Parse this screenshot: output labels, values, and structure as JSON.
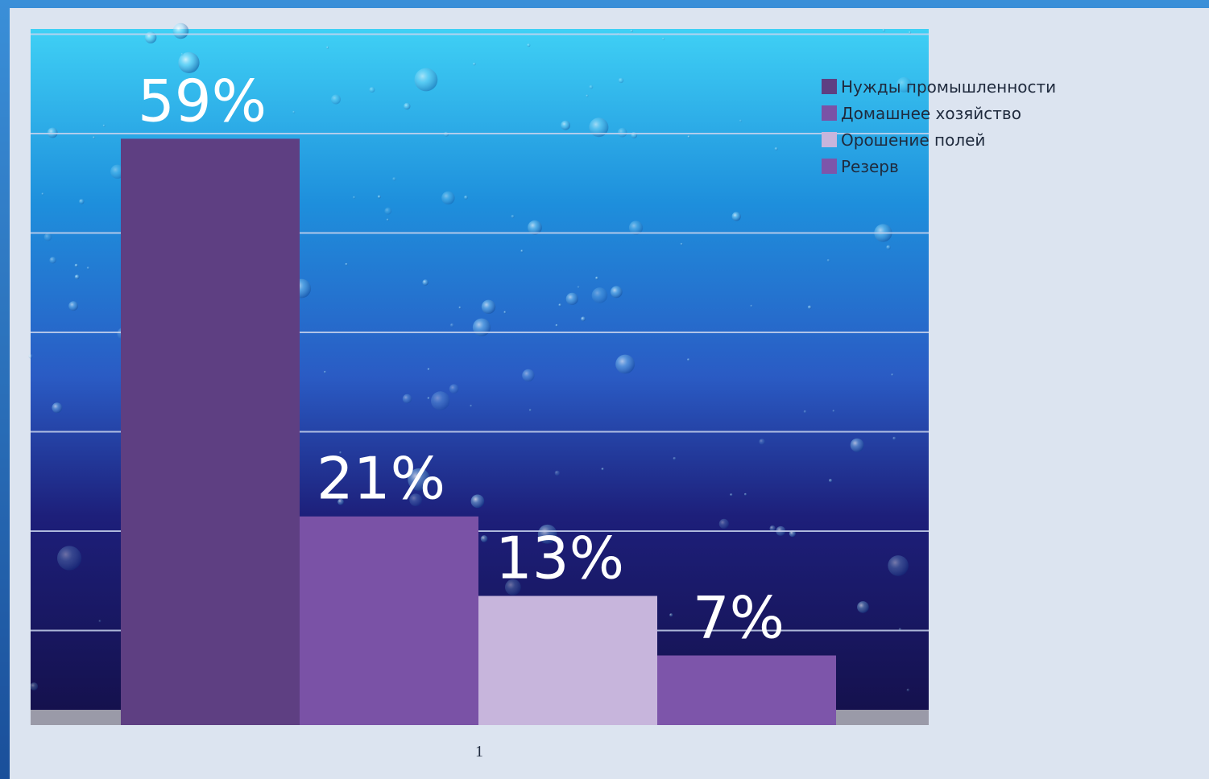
{
  "chart_data": {
    "type": "bar",
    "categories": [
      "1"
    ],
    "series": [
      {
        "name": "Нужды промышленности",
        "values": [
          59
        ],
        "label": "59%",
        "color": "#5e3f82"
      },
      {
        "name": "Домашнее хозяйство",
        "values": [
          21
        ],
        "label": "21%",
        "color": "#7a52a6"
      },
      {
        "name": "Орошение полей",
        "values": [
          13
        ],
        "label": "13%",
        "color": "#c7b5dc"
      },
      {
        "name": "Резерв",
        "values": [
          7
        ],
        "label": "7%",
        "color": "#7d55aa"
      }
    ],
    "ylim": [
      0,
      70
    ],
    "grid": true,
    "legend_position": "top-right",
    "background": "water-bubbles"
  }
}
